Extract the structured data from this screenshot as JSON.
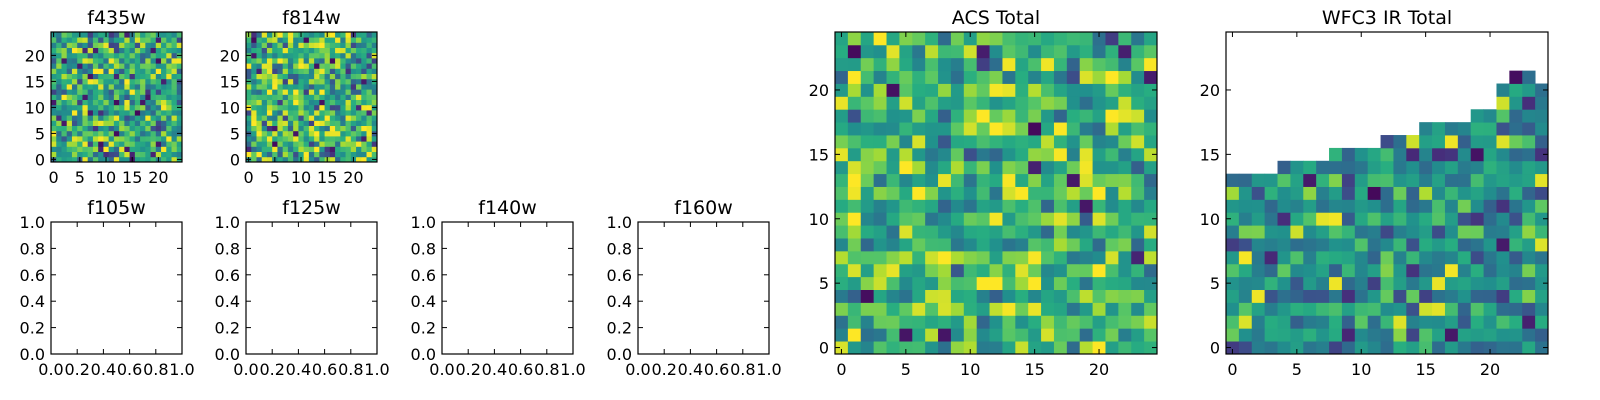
{
  "chart_data": [
    {
      "type": "heatmap",
      "title": "f435w",
      "grid_size": 25,
      "xticks": [
        "0",
        "5",
        "10",
        "15",
        "20"
      ],
      "yticks": [
        "0",
        "5",
        "10",
        "15",
        "20"
      ],
      "xlim": [
        -0.5,
        24.5
      ],
      "ylim": [
        -0.5,
        24.5
      ],
      "colormap": "viridis",
      "seed": 11,
      "mean": 0.58,
      "spread": 0.28
    },
    {
      "type": "heatmap",
      "title": "f814w",
      "grid_size": 25,
      "xticks": [
        "0",
        "5",
        "10",
        "15",
        "20"
      ],
      "yticks": [
        "0",
        "5",
        "10",
        "15",
        "20"
      ],
      "xlim": [
        -0.5,
        24.5
      ],
      "ylim": [
        -0.5,
        24.5
      ],
      "colormap": "viridis",
      "seed": 23,
      "mean": 0.64,
      "spread": 0.3
    },
    {
      "type": "empty",
      "title": "f105w",
      "xticks": [
        "0.0",
        "0.2",
        "0.4",
        "0.6",
        "0.8",
        "1.0"
      ],
      "yticks": [
        "0.0",
        "0.2",
        "0.4",
        "0.6",
        "0.8",
        "1.0"
      ],
      "xlim": [
        0,
        1
      ],
      "ylim": [
        0,
        1
      ]
    },
    {
      "type": "empty",
      "title": "f125w",
      "xticks": [
        "0.0",
        "0.2",
        "0.4",
        "0.6",
        "0.8",
        "1.0"
      ],
      "yticks": [
        "0.0",
        "0.2",
        "0.4",
        "0.6",
        "0.8",
        "1.0"
      ],
      "xlim": [
        0,
        1
      ],
      "ylim": [
        0,
        1
      ]
    },
    {
      "type": "empty",
      "title": "f140w",
      "xticks": [
        "0.0",
        "0.2",
        "0.4",
        "0.6",
        "0.8",
        "1.0"
      ],
      "yticks": [
        "0.0",
        "0.2",
        "0.4",
        "0.6",
        "0.8",
        "1.0"
      ],
      "xlim": [
        0,
        1
      ],
      "ylim": [
        0,
        1
      ]
    },
    {
      "type": "empty",
      "title": "f160w",
      "xticks": [
        "0.0",
        "0.2",
        "0.4",
        "0.6",
        "0.8",
        "1.0"
      ],
      "yticks": [
        "0.0",
        "0.2",
        "0.4",
        "0.6",
        "0.8",
        "1.0"
      ],
      "xlim": [
        0,
        1
      ],
      "ylim": [
        0,
        1
      ]
    },
    {
      "type": "heatmap",
      "title": "ACS Total",
      "grid_size": 25,
      "xticks": [
        "0",
        "5",
        "10",
        "15",
        "20"
      ],
      "yticks": [
        "0",
        "5",
        "10",
        "15",
        "20"
      ],
      "xlim": [
        -0.5,
        24.5
      ],
      "ylim": [
        -0.5,
        24.5
      ],
      "colormap": "viridis",
      "seed": 37,
      "mean": 0.66,
      "spread": 0.26
    },
    {
      "type": "heatmap",
      "title": "WFC3 IR Total",
      "grid_size": 25,
      "xticks": [
        "0",
        "5",
        "10",
        "15",
        "20"
      ],
      "yticks": [
        "0",
        "5",
        "10",
        "15",
        "20"
      ],
      "xlim": [
        -0.5,
        24.5
      ],
      "ylim": [
        -0.5,
        24.5
      ],
      "colormap": "viridis",
      "seed": 53,
      "mean": 0.5,
      "spread": 0.22,
      "column_top_row": [
        13,
        13,
        13,
        13,
        14,
        14,
        14,
        14,
        15,
        15,
        15,
        15,
        16,
        16,
        16,
        17,
        17,
        17,
        17,
        18,
        18,
        20,
        21,
        21,
        20
      ]
    }
  ]
}
